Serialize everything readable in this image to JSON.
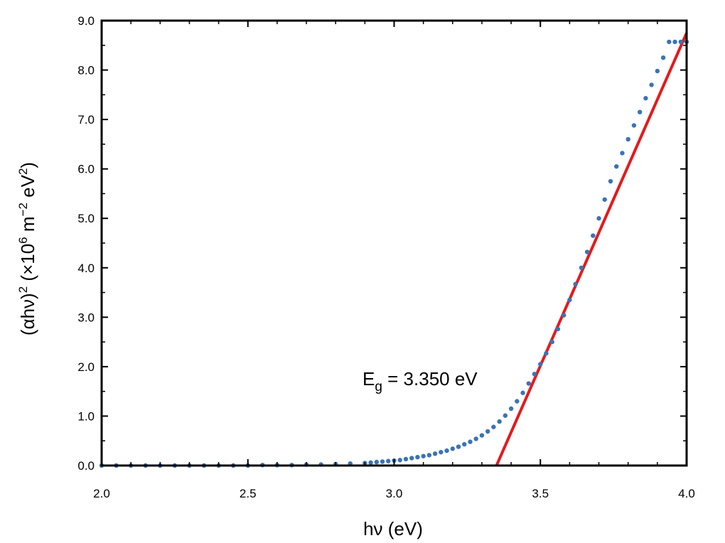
{
  "chart_data": {
    "type": "scatter",
    "xlabel": "hν (eV)",
    "ylabel": {
      "prefix": "(αhν)",
      "sup1": "2",
      "mid": " (×10",
      "sup2": "6",
      "mid2": " m",
      "sup3": "−2",
      "mid3": " eV",
      "sup4": "2",
      "suffix": ")"
    },
    "xlim": [
      2.0,
      4.0
    ],
    "ylim": [
      0.0,
      9.0
    ],
    "x_ticks": [
      "2.0",
      "2.5",
      "3.0",
      "3.5",
      "4.0"
    ],
    "y_ticks": [
      "0.0",
      "1.0",
      "2.0",
      "3.0",
      "4.0",
      "5.0",
      "6.0",
      "7.0",
      "8.0",
      "9.0"
    ],
    "grid": false,
    "annotation": {
      "main": "E",
      "sub": "g",
      "rest": " = 3.350 eV"
    },
    "fit_line": {
      "color": "#e31a1c",
      "x": [
        3.35,
        4.0
      ],
      "y": [
        0.0,
        8.75
      ]
    },
    "marker_color": "#3b73b5",
    "series": [
      {
        "x": [
          2.0,
          2.05,
          2.1,
          2.15,
          2.2,
          2.25,
          2.3,
          2.35,
          2.4,
          2.45,
          2.5,
          2.55,
          2.6,
          2.65,
          2.7,
          2.75,
          2.8,
          2.85,
          2.9,
          2.92,
          2.94,
          2.96,
          2.98,
          3.0,
          3.02,
          3.04,
          3.06,
          3.08,
          3.1,
          3.12,
          3.14,
          3.16,
          3.18,
          3.2,
          3.22,
          3.24,
          3.26,
          3.28,
          3.3,
          3.32,
          3.34,
          3.36,
          3.38,
          3.4,
          3.42,
          3.44,
          3.46,
          3.48,
          3.5,
          3.52,
          3.54,
          3.56,
          3.58,
          3.6,
          3.62,
          3.64,
          3.66,
          3.68,
          3.7,
          3.72,
          3.74,
          3.76,
          3.78,
          3.8,
          3.82,
          3.84,
          3.86,
          3.88,
          3.9,
          3.92,
          3.94,
          3.96,
          3.98,
          4.0
        ],
        "y": [
          0.0,
          0.0,
          0.0,
          0.0,
          0.0,
          0.0,
          0.0,
          0.0,
          0.0,
          0.0,
          0.0,
          0.01,
          0.01,
          0.01,
          0.02,
          0.02,
          0.03,
          0.04,
          0.05,
          0.06,
          0.07,
          0.08,
          0.09,
          0.1,
          0.11,
          0.13,
          0.15,
          0.17,
          0.19,
          0.21,
          0.24,
          0.27,
          0.3,
          0.34,
          0.38,
          0.43,
          0.48,
          0.54,
          0.61,
          0.69,
          0.78,
          0.89,
          1.01,
          1.15,
          1.3,
          1.47,
          1.66,
          1.85,
          2.05,
          2.27,
          2.5,
          2.76,
          3.04,
          3.35,
          3.67,
          4.0,
          4.32,
          4.65,
          5.0,
          5.38,
          5.75,
          6.05,
          6.32,
          6.6,
          6.88,
          7.15,
          7.43,
          7.7,
          7.98,
          8.25,
          8.57,
          8.57,
          8.57,
          8.57
        ]
      }
    ]
  }
}
